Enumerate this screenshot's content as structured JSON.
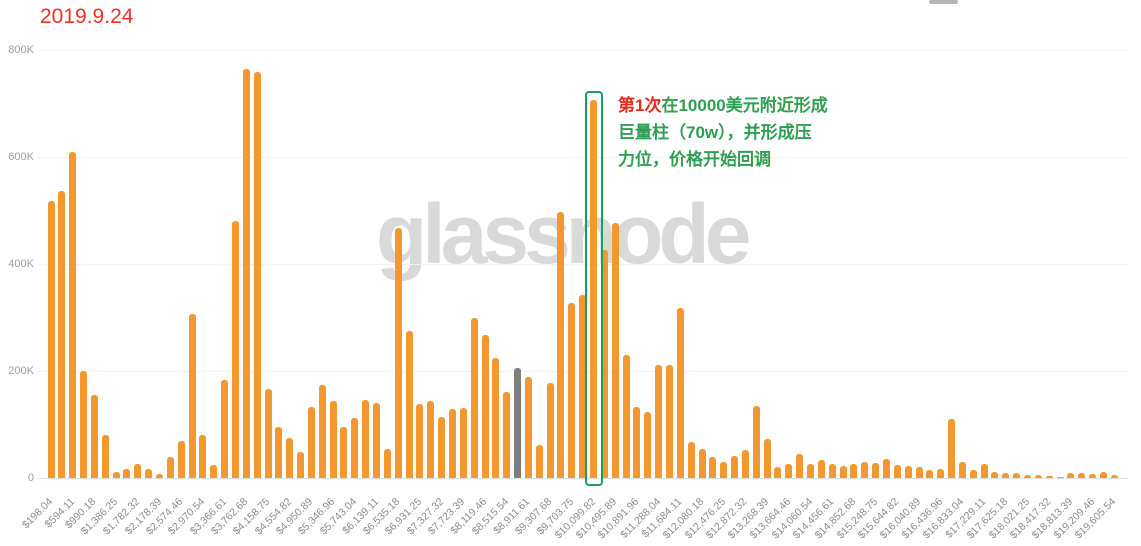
{
  "header": {
    "date_label": "2019.9.24"
  },
  "watermark": {
    "text": "glassnode"
  },
  "annotation": {
    "highlight_prefix": "第1次",
    "line1_rest": "在10000美元附近形成",
    "line2": "巨量柱（70w），并形成压",
    "line3": "力位，价格开始回调",
    "prefix_color": "#e02b20",
    "text_color": "#2f9e52",
    "box_color": "#12a15e"
  },
  "colors": {
    "background": "#ffffff",
    "date_red": "#ef3125",
    "bar_orange": "#f2982f",
    "current_price_gray": "#7e7e7e",
    "highlight_green": "#12a15e",
    "watermark_gray": "#d9d9d9",
    "axis_text_gray": "#8c8c8c",
    "gridline_gray": "#f2f2f2"
  },
  "chart_data": {
    "type": "bar",
    "title": "",
    "xlabel": "",
    "ylabel": "",
    "unit": "thousands (K) of BTC per price bin",
    "ylim": [
      0,
      800
    ],
    "grid": true,
    "legend": null,
    "y_tick_labels": [
      "800K",
      "600K",
      "400K",
      "200K",
      "0"
    ],
    "y_tick_values": [
      800,
      600,
      400,
      200,
      0
    ],
    "x_tick_labels": [
      "$198.04",
      "$594.11",
      "$990.18",
      "$1,386.25",
      "$1,782.32",
      "$2,178.39",
      "$2,574.46",
      "$2,970.54",
      "$3,366.61",
      "$3,762.68",
      "$4,158.75",
      "$4,554.82",
      "$4,950.89",
      "$5,346.96",
      "$5,743.04",
      "$6,139.11",
      "$6,535.18",
      "$6,931.25",
      "$7,327.32",
      "$7,723.39",
      "$8,119.46",
      "$8,515.54",
      "$8,911.61",
      "$9,307.68",
      "$9,703.75",
      "$10,099.82",
      "$10,495.89",
      "$10,891.96",
      "$11,288.04",
      "$11,684.11",
      "$12,080.18",
      "$12,476.25",
      "$12,872.32",
      "$13,268.39",
      "$13,664.46",
      "$14,060.54",
      "$14,456.61",
      "$14,852.68",
      "$15,248.75",
      "$15,644.82",
      "$16,040.89",
      "$16,436.96",
      "$16,833.04",
      "$17,229.11",
      "$17,625.18",
      "$18,021.25",
      "$18,417.32",
      "$18,813.39",
      "$19,209.46",
      "$19,605.54"
    ],
    "values": [
      518,
      537,
      610,
      200,
      155,
      81,
      12,
      16,
      26,
      16,
      8,
      40,
      70,
      307,
      81,
      25,
      183,
      481,
      764,
      759,
      166,
      96,
      74,
      49,
      133,
      174,
      143,
      96,
      112,
      145,
      140,
      55,
      467,
      274,
      138,
      143,
      114,
      129,
      130,
      299,
      267,
      224,
      161,
      205,
      189,
      62,
      177,
      497,
      327,
      342,
      707,
      427,
      477,
      229,
      132,
      123,
      212,
      211,
      317,
      67,
      55,
      40,
      30,
      41,
      52,
      135,
      72,
      21,
      26,
      45,
      27,
      34,
      26,
      22,
      27,
      30,
      28,
      35,
      24,
      22,
      21,
      15,
      16,
      110,
      29,
      15,
      26,
      12,
      10,
      9,
      6,
      5,
      4,
      2,
      9,
      10,
      7,
      11,
      5
    ],
    "highlight_index": 50,
    "gray_bar_index": 43,
    "bar_color": "#f2982f",
    "gray_bar_color": "#7e7e7e",
    "highlight_box_color": "#12a15e"
  }
}
